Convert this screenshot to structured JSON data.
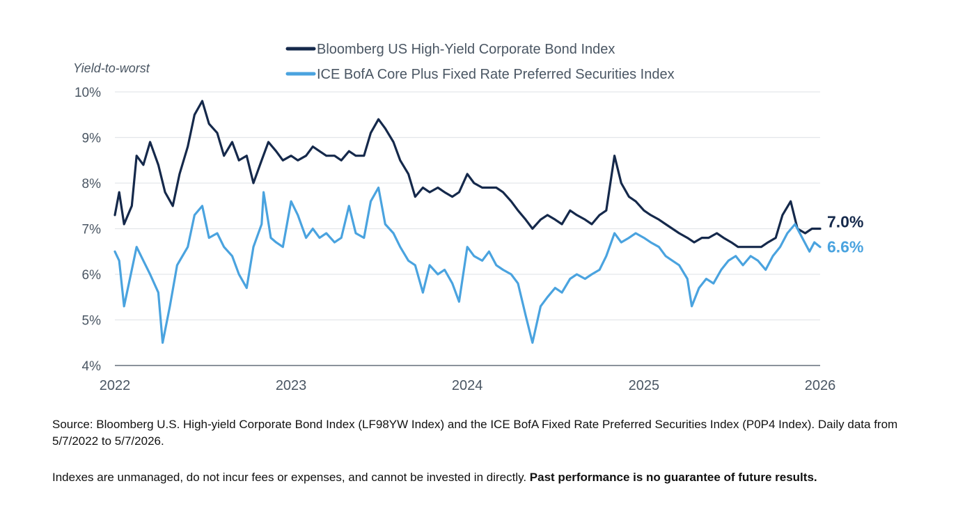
{
  "chart_data": {
    "type": "line",
    "ylabel": "Yield-to-worst",
    "x_tick_labels": [
      "2022",
      "2023",
      "2024",
      "2025",
      "2026"
    ],
    "y_tick_labels": [
      "4%",
      "5%",
      "6%",
      "7%",
      "8%",
      "9%",
      "10%"
    ],
    "ylim": [
      4,
      10
    ],
    "xlim": [
      "2022-01-01",
      "2026-01-01"
    ],
    "grid": true,
    "legend_position": "top",
    "series": [
      {
        "name": "Bloomberg US High-Yield Corporate Bond Index",
        "color": "#15294b",
        "end_label": "7.0%",
        "points": [
          [
            "2022-01-01",
            7.3
          ],
          [
            "2022-01-10",
            7.8
          ],
          [
            "2022-01-20",
            7.1
          ],
          [
            "2022-02-05",
            7.5
          ],
          [
            "2022-02-15",
            8.6
          ],
          [
            "2022-03-01",
            8.4
          ],
          [
            "2022-03-15",
            8.9
          ],
          [
            "2022-04-01",
            8.4
          ],
          [
            "2022-04-15",
            7.8
          ],
          [
            "2022-05-01",
            7.5
          ],
          [
            "2022-05-15",
            8.2
          ],
          [
            "2022-06-01",
            8.8
          ],
          [
            "2022-06-15",
            9.5
          ],
          [
            "2022-07-01",
            9.8
          ],
          [
            "2022-07-15",
            9.3
          ],
          [
            "2022-08-01",
            9.1
          ],
          [
            "2022-08-15",
            8.6
          ],
          [
            "2022-09-01",
            8.9
          ],
          [
            "2022-09-15",
            8.5
          ],
          [
            "2022-10-01",
            8.6
          ],
          [
            "2022-10-15",
            8.0
          ],
          [
            "2022-11-01",
            8.5
          ],
          [
            "2022-11-15",
            8.9
          ],
          [
            "2022-12-01",
            8.7
          ],
          [
            "2022-12-15",
            8.5
          ],
          [
            "2023-01-01",
            8.6
          ],
          [
            "2023-01-15",
            8.5
          ],
          [
            "2023-02-01",
            8.6
          ],
          [
            "2023-02-15",
            8.8
          ],
          [
            "2023-03-01",
            8.7
          ],
          [
            "2023-03-15",
            8.6
          ],
          [
            "2023-04-01",
            8.6
          ],
          [
            "2023-04-15",
            8.5
          ],
          [
            "2023-05-01",
            8.7
          ],
          [
            "2023-05-15",
            8.6
          ],
          [
            "2023-06-01",
            8.6
          ],
          [
            "2023-06-15",
            9.1
          ],
          [
            "2023-07-01",
            9.4
          ],
          [
            "2023-07-15",
            9.2
          ],
          [
            "2023-08-01",
            8.9
          ],
          [
            "2023-08-15",
            8.5
          ],
          [
            "2023-09-01",
            8.2
          ],
          [
            "2023-09-15",
            7.7
          ],
          [
            "2023-10-01",
            7.9
          ],
          [
            "2023-10-15",
            7.8
          ],
          [
            "2023-11-01",
            7.9
          ],
          [
            "2023-11-15",
            7.8
          ],
          [
            "2023-12-01",
            7.7
          ],
          [
            "2023-12-15",
            7.8
          ],
          [
            "2024-01-01",
            8.2
          ],
          [
            "2024-01-15",
            8.0
          ],
          [
            "2024-02-01",
            7.9
          ],
          [
            "2024-02-15",
            7.9
          ],
          [
            "2024-03-01",
            7.9
          ],
          [
            "2024-03-15",
            7.8
          ],
          [
            "2024-04-01",
            7.6
          ],
          [
            "2024-04-15",
            7.4
          ],
          [
            "2024-05-01",
            7.2
          ],
          [
            "2024-05-15",
            7.0
          ],
          [
            "2024-06-01",
            7.2
          ],
          [
            "2024-06-15",
            7.3
          ],
          [
            "2024-07-01",
            7.2
          ],
          [
            "2024-07-15",
            7.1
          ],
          [
            "2024-08-01",
            7.4
          ],
          [
            "2024-08-15",
            7.3
          ],
          [
            "2024-09-01",
            7.2
          ],
          [
            "2024-09-15",
            7.1
          ],
          [
            "2024-10-01",
            7.3
          ],
          [
            "2024-10-15",
            7.4
          ],
          [
            "2024-11-01",
            8.6
          ],
          [
            "2024-11-15",
            8.0
          ],
          [
            "2024-12-01",
            7.7
          ],
          [
            "2024-12-15",
            7.6
          ],
          [
            "2025-01-01",
            7.4
          ],
          [
            "2025-01-15",
            7.3
          ],
          [
            "2025-02-01",
            7.2
          ],
          [
            "2025-02-15",
            7.1
          ],
          [
            "2025-03-01",
            7.0
          ],
          [
            "2025-03-15",
            6.9
          ],
          [
            "2025-04-01",
            6.8
          ],
          [
            "2025-04-15",
            6.7
          ],
          [
            "2025-05-01",
            6.8
          ],
          [
            "2025-05-15",
            6.8
          ],
          [
            "2025-06-01",
            6.9
          ],
          [
            "2025-06-15",
            6.8
          ],
          [
            "2025-07-01",
            6.7
          ],
          [
            "2025-07-15",
            6.6
          ],
          [
            "2025-08-01",
            6.6
          ],
          [
            "2025-08-15",
            6.6
          ],
          [
            "2025-09-01",
            6.6
          ],
          [
            "2025-09-15",
            6.7
          ],
          [
            "2025-10-01",
            6.8
          ],
          [
            "2025-10-15",
            7.3
          ],
          [
            "2025-11-01",
            7.6
          ],
          [
            "2025-11-15",
            7.0
          ],
          [
            "2025-12-01",
            6.9
          ],
          [
            "2025-12-15",
            7.0
          ],
          [
            "2026-01-01",
            7.0
          ]
        ]
      },
      {
        "name": "ICE BofA Core Plus Fixed Rate Preferred Securities Index",
        "color": "#4aa3df",
        "end_label": "6.6%",
        "points": [
          [
            "2022-01-01",
            6.5
          ],
          [
            "2022-01-10",
            6.3
          ],
          [
            "2022-01-20",
            5.3
          ],
          [
            "2022-02-05",
            6.1
          ],
          [
            "2022-02-15",
            6.6
          ],
          [
            "2022-03-01",
            6.3
          ],
          [
            "2022-03-15",
            6.0
          ],
          [
            "2022-04-01",
            5.6
          ],
          [
            "2022-04-10",
            4.5
          ],
          [
            "2022-04-25",
            5.3
          ],
          [
            "2022-05-10",
            6.2
          ],
          [
            "2022-06-01",
            6.6
          ],
          [
            "2022-06-15",
            7.3
          ],
          [
            "2022-07-01",
            7.5
          ],
          [
            "2022-07-15",
            6.8
          ],
          [
            "2022-08-01",
            6.9
          ],
          [
            "2022-08-15",
            6.6
          ],
          [
            "2022-09-01",
            6.4
          ],
          [
            "2022-09-15",
            6.0
          ],
          [
            "2022-10-01",
            5.7
          ],
          [
            "2022-10-15",
            6.6
          ],
          [
            "2022-11-01",
            7.1
          ],
          [
            "2022-11-05",
            7.8
          ],
          [
            "2022-11-20",
            6.8
          ],
          [
            "2022-12-01",
            6.7
          ],
          [
            "2022-12-15",
            6.6
          ],
          [
            "2023-01-01",
            7.6
          ],
          [
            "2023-01-15",
            7.3
          ],
          [
            "2023-02-01",
            6.8
          ],
          [
            "2023-02-15",
            7.0
          ],
          [
            "2023-03-01",
            6.8
          ],
          [
            "2023-03-15",
            6.9
          ],
          [
            "2023-04-01",
            6.7
          ],
          [
            "2023-04-15",
            6.8
          ],
          [
            "2023-05-01",
            7.5
          ],
          [
            "2023-05-15",
            6.9
          ],
          [
            "2023-06-01",
            6.8
          ],
          [
            "2023-06-15",
            7.6
          ],
          [
            "2023-07-01",
            7.9
          ],
          [
            "2023-07-15",
            7.1
          ],
          [
            "2023-08-01",
            6.9
          ],
          [
            "2023-08-15",
            6.6
          ],
          [
            "2023-09-01",
            6.3
          ],
          [
            "2023-09-15",
            6.2
          ],
          [
            "2023-10-01",
            5.6
          ],
          [
            "2023-10-15",
            6.2
          ],
          [
            "2023-11-01",
            6.0
          ],
          [
            "2023-11-15",
            6.1
          ],
          [
            "2023-12-01",
            5.8
          ],
          [
            "2023-12-15",
            5.4
          ],
          [
            "2024-01-01",
            6.6
          ],
          [
            "2024-01-15",
            6.4
          ],
          [
            "2024-02-01",
            6.3
          ],
          [
            "2024-02-15",
            6.5
          ],
          [
            "2024-03-01",
            6.2
          ],
          [
            "2024-03-15",
            6.1
          ],
          [
            "2024-04-01",
            6.0
          ],
          [
            "2024-04-15",
            5.8
          ],
          [
            "2024-05-01",
            5.1
          ],
          [
            "2024-05-15",
            4.5
          ],
          [
            "2024-06-01",
            5.3
          ],
          [
            "2024-06-15",
            5.5
          ],
          [
            "2024-07-01",
            5.7
          ],
          [
            "2024-07-15",
            5.6
          ],
          [
            "2024-08-01",
            5.9
          ],
          [
            "2024-08-15",
            6.0
          ],
          [
            "2024-09-01",
            5.9
          ],
          [
            "2024-09-15",
            6.0
          ],
          [
            "2024-10-01",
            6.1
          ],
          [
            "2024-10-15",
            6.4
          ],
          [
            "2024-11-01",
            6.9
          ],
          [
            "2024-11-15",
            6.7
          ],
          [
            "2024-12-01",
            6.8
          ],
          [
            "2024-12-15",
            6.9
          ],
          [
            "2025-01-01",
            6.8
          ],
          [
            "2025-01-15",
            6.7
          ],
          [
            "2025-02-01",
            6.6
          ],
          [
            "2025-02-15",
            6.4
          ],
          [
            "2025-03-01",
            6.3
          ],
          [
            "2025-03-15",
            6.2
          ],
          [
            "2025-04-01",
            5.9
          ],
          [
            "2025-04-10",
            5.3
          ],
          [
            "2025-04-25",
            5.7
          ],
          [
            "2025-05-10",
            5.9
          ],
          [
            "2025-05-25",
            5.8
          ],
          [
            "2025-06-10",
            6.1
          ],
          [
            "2025-06-25",
            6.3
          ],
          [
            "2025-07-10",
            6.4
          ],
          [
            "2025-07-25",
            6.2
          ],
          [
            "2025-08-10",
            6.4
          ],
          [
            "2025-08-25",
            6.3
          ],
          [
            "2025-09-10",
            6.1
          ],
          [
            "2025-09-25",
            6.4
          ],
          [
            "2025-10-10",
            6.6
          ],
          [
            "2025-10-25",
            6.9
          ],
          [
            "2025-11-10",
            7.1
          ],
          [
            "2025-11-25",
            6.8
          ],
          [
            "2025-12-10",
            6.5
          ],
          [
            "2025-12-20",
            6.7
          ],
          [
            "2026-01-01",
            6.6
          ]
        ]
      }
    ]
  },
  "footnote": {
    "source": "Source: Bloomberg U.S. High-yield Corporate Bond Index (LF98YW Index) and the ICE BofA Fixed Rate Preferred Securities Index (P0P4 Index). Daily data from 5/7/2022 to 5/7/2026.",
    "disclaimer": "Indexes are unmanaged, do not incur fees or expenses, and cannot be invested in directly.",
    "disclaimer_bold": "Past performance is no guarantee of future results."
  }
}
